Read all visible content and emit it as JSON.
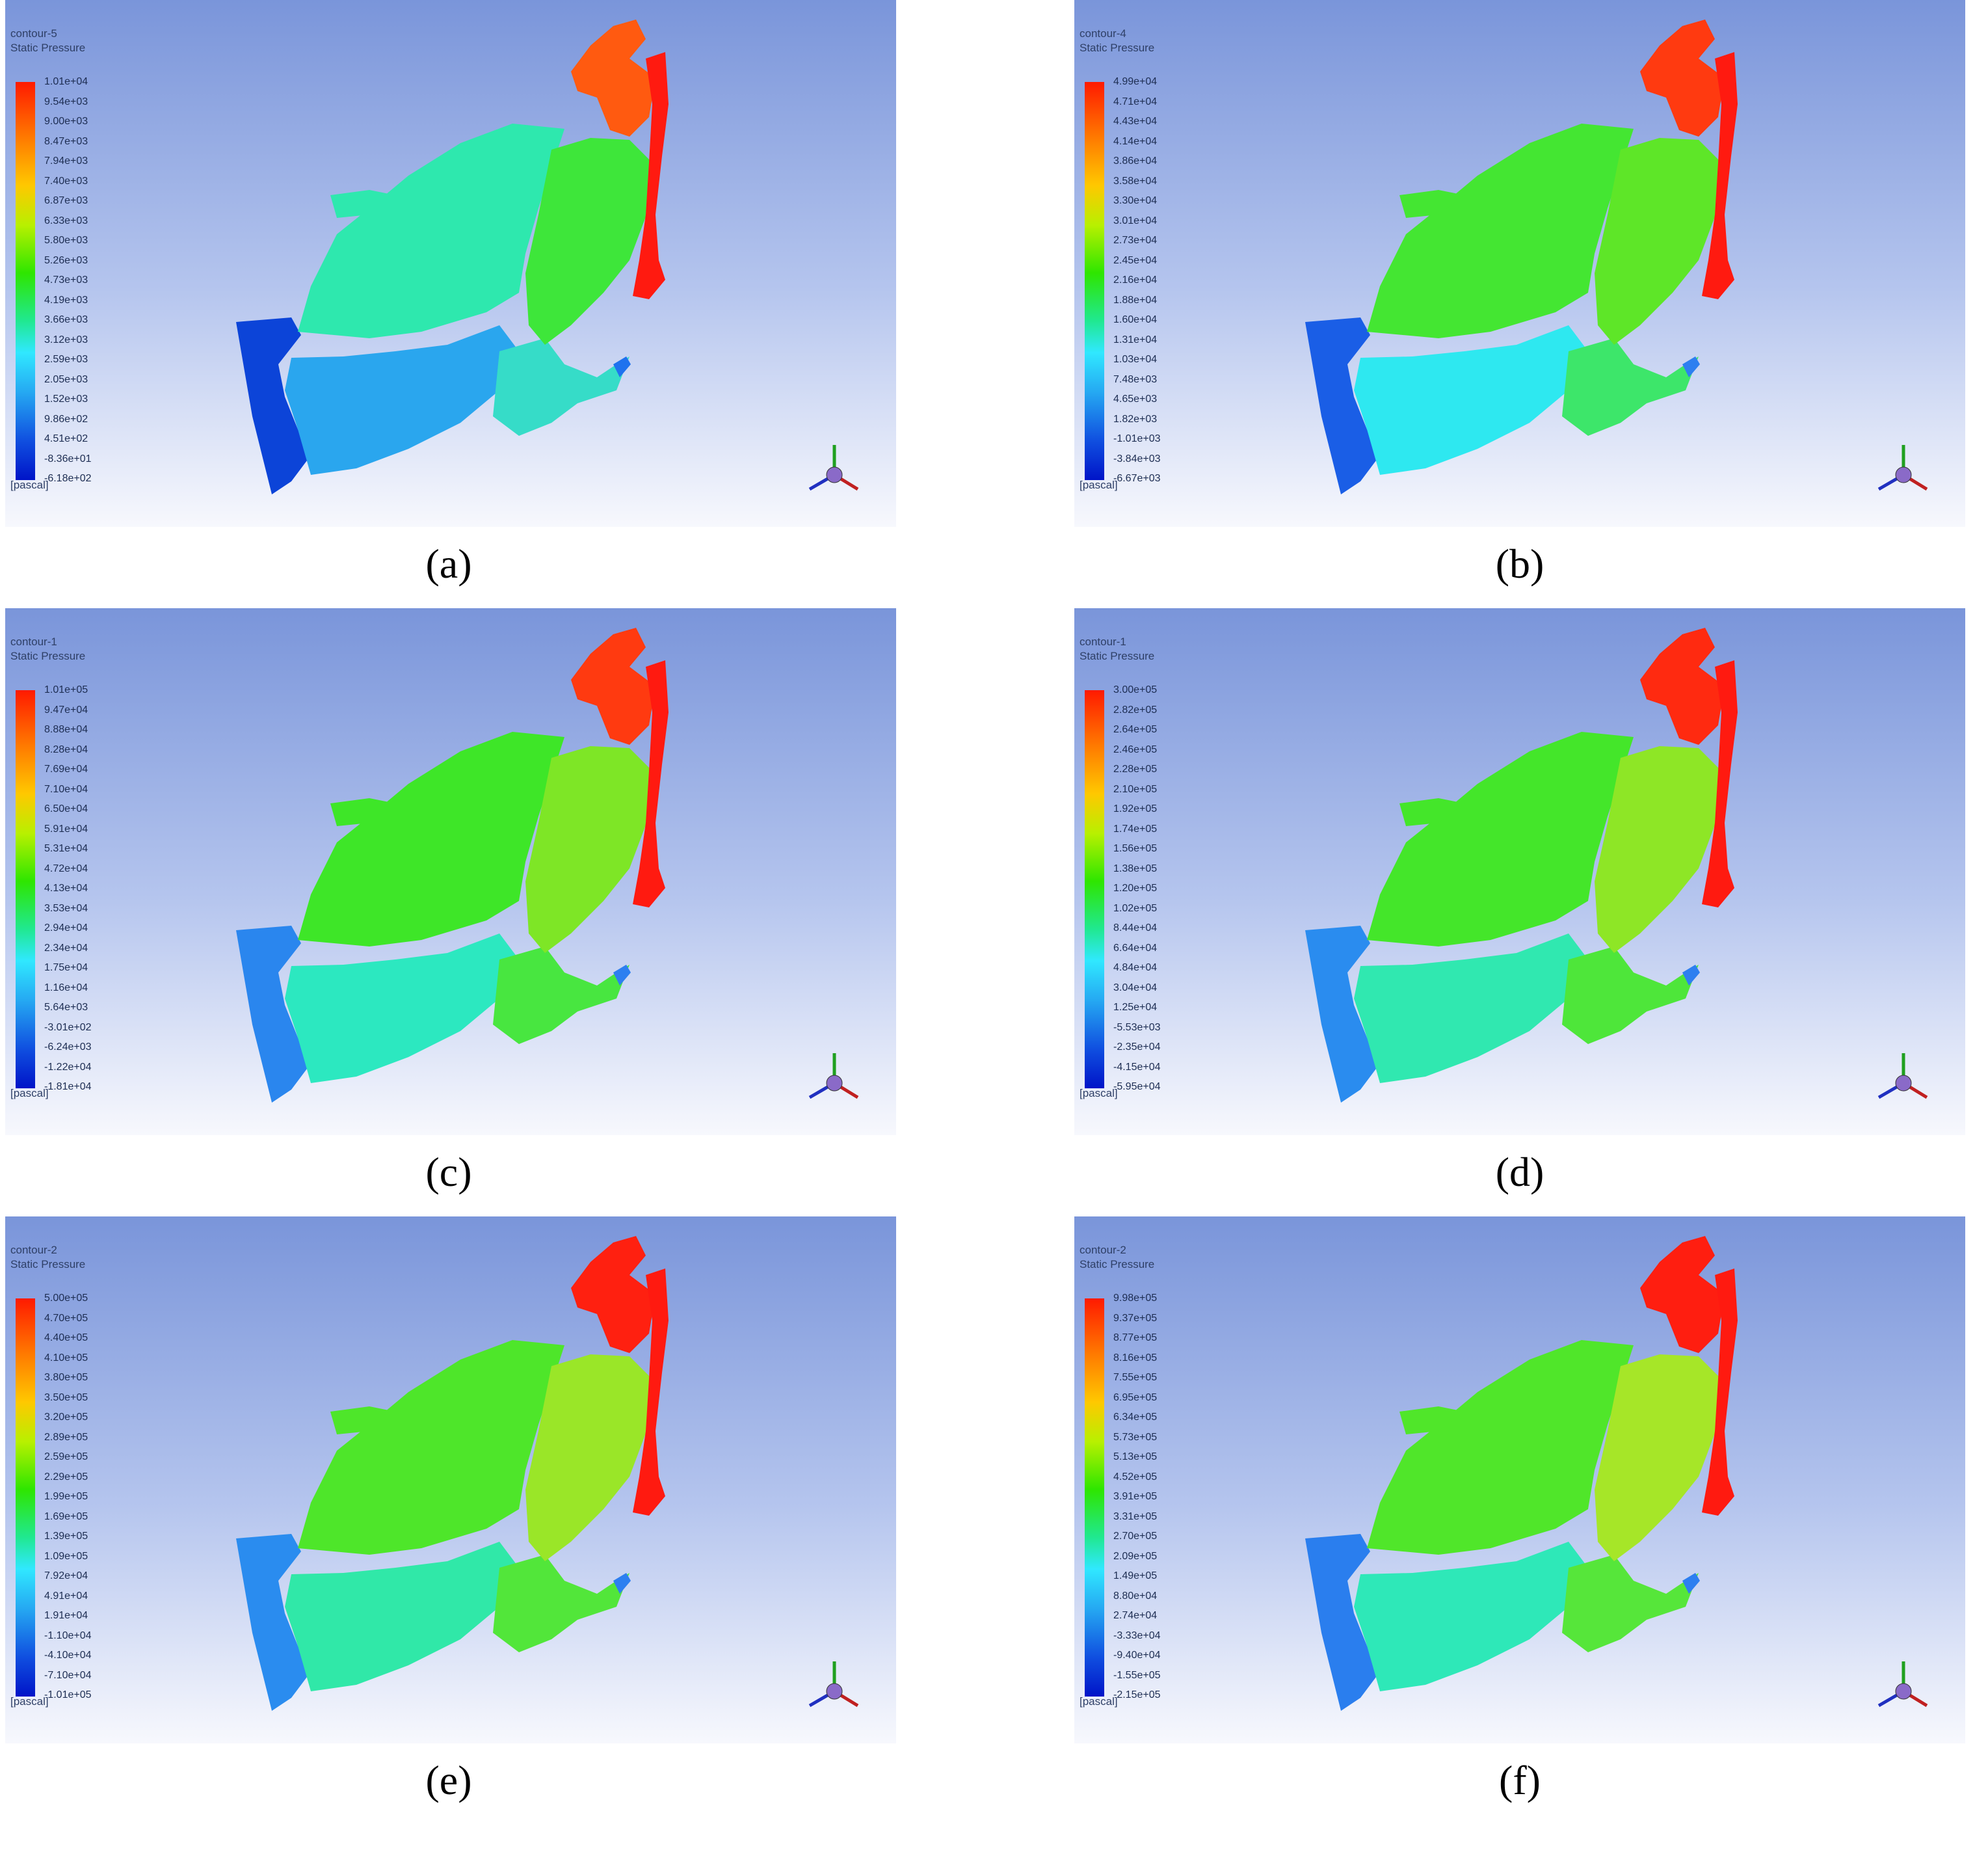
{
  "panels": [
    {
      "caption": "(a)",
      "contour_name": "contour-5",
      "variable": "Static Pressure",
      "unit": "[pascal]",
      "ticks": [
        "1.01e+04",
        "9.54e+03",
        "9.00e+03",
        "8.47e+03",
        "7.94e+03",
        "7.40e+03",
        "6.87e+03",
        "6.33e+03",
        "5.80e+03",
        "5.26e+03",
        "4.73e+03",
        "4.19e+03",
        "3.66e+03",
        "3.12e+03",
        "2.59e+03",
        "2.05e+03",
        "1.52e+03",
        "9.86e+02",
        "4.51e+02",
        "-8.36e+01",
        "-6.18e+02"
      ],
      "colors": {
        "west": "#0c44d8",
        "south": "#2aa6ee",
        "southeast": "#36dcc8",
        "center": "#2ee8ae",
        "east": "#3ee63a",
        "northeast": "#ff5a10",
        "far_east": "#ff1a10",
        "spot": "#1f72ee"
      }
    },
    {
      "caption": "(b)",
      "contour_name": "contour-4",
      "variable": "Static Pressure",
      "unit": "[pascal]",
      "ticks": [
        "4.99e+04",
        "4.71e+04",
        "4.43e+04",
        "4.14e+04",
        "3.86e+04",
        "3.58e+04",
        "3.30e+04",
        "3.01e+04",
        "2.73e+04",
        "2.45e+04",
        "2.16e+04",
        "1.88e+04",
        "1.60e+04",
        "1.31e+04",
        "1.03e+04",
        "7.48e+03",
        "4.65e+03",
        "1.82e+03",
        "-1.01e+03",
        "-3.84e+03",
        "-6.67e+03"
      ],
      "colors": {
        "west": "#1a5ee6",
        "south": "#2ee8f0",
        "southeast": "#3de66a",
        "center": "#44e632",
        "east": "#5ee628",
        "northeast": "#ff3a10",
        "far_east": "#ff1a10",
        "spot": "#2d7ff0"
      }
    },
    {
      "caption": "(c)",
      "contour_name": "contour-1",
      "variable": "Static Pressure",
      "unit": "[pascal]",
      "ticks": [
        "1.01e+05",
        "9.47e+04",
        "8.88e+04",
        "8.28e+04",
        "7.69e+04",
        "7.10e+04",
        "6.50e+04",
        "5.91e+04",
        "5.31e+04",
        "4.72e+04",
        "4.13e+04",
        "3.53e+04",
        "2.94e+04",
        "2.34e+04",
        "1.75e+04",
        "1.16e+04",
        "5.64e+03",
        "-3.01e+02",
        "-6.24e+03",
        "-1.22e+04",
        "-1.81e+04"
      ],
      "colors": {
        "west": "#2a86ee",
        "south": "#2ce8c0",
        "southeast": "#48e640",
        "center": "#3ee628",
        "east": "#7ee626",
        "northeast": "#ff3a10",
        "far_east": "#ff1a10",
        "spot": "#2d7ff0"
      }
    },
    {
      "caption": "(d)",
      "contour_name": "contour-1",
      "variable": "Static Pressure",
      "unit": "[pascal]",
      "ticks": [
        "3.00e+05",
        "2.82e+05",
        "2.64e+05",
        "2.46e+05",
        "2.28e+05",
        "2.10e+05",
        "1.92e+05",
        "1.74e+05",
        "1.56e+05",
        "1.38e+05",
        "1.20e+05",
        "1.02e+05",
        "8.44e+04",
        "6.64e+04",
        "4.84e+04",
        "3.04e+04",
        "1.25e+04",
        "-5.53e+03",
        "-2.35e+04",
        "-4.15e+04",
        "-5.95e+04"
      ],
      "colors": {
        "west": "#2a8cef",
        "south": "#30e8b0",
        "southeast": "#4ee63a",
        "center": "#44e62a",
        "east": "#8ee626",
        "northeast": "#ff2a10",
        "far_east": "#ff1a10",
        "spot": "#2d7ff0"
      }
    },
    {
      "caption": "(e)",
      "contour_name": "contour-2",
      "variable": "Static Pressure",
      "unit": "[pascal]",
      "ticks": [
        "5.00e+05",
        "4.70e+05",
        "4.40e+05",
        "4.10e+05",
        "3.80e+05",
        "3.50e+05",
        "3.20e+05",
        "2.89e+05",
        "2.59e+05",
        "2.29e+05",
        "1.99e+05",
        "1.69e+05",
        "1.39e+05",
        "1.09e+05",
        "7.92e+04",
        "4.91e+04",
        "1.91e+04",
        "-1.10e+04",
        "-4.10e+04",
        "-7.10e+04",
        "-1.01e+05"
      ],
      "colors": {
        "west": "#2a8cef",
        "south": "#30e8a8",
        "southeast": "#52e63a",
        "center": "#4ee62a",
        "east": "#9ae628",
        "northeast": "#ff2010",
        "far_east": "#ff1a10",
        "spot": "#2d7ff0"
      }
    },
    {
      "caption": "(f)",
      "contour_name": "contour-2",
      "variable": "Static Pressure",
      "unit": "[pascal]",
      "ticks": [
        "9.98e+05",
        "9.37e+05",
        "8.77e+05",
        "8.16e+05",
        "7.55e+05",
        "6.95e+05",
        "6.34e+05",
        "5.73e+05",
        "5.13e+05",
        "4.52e+05",
        "3.91e+05",
        "3.31e+05",
        "2.70e+05",
        "2.09e+05",
        "1.49e+05",
        "8.80e+04",
        "2.74e+04",
        "-3.33e+04",
        "-9.40e+04",
        "-1.55e+05",
        "-2.15e+05"
      ],
      "colors": {
        "west": "#2a7eee",
        "south": "#2ee8b8",
        "southeast": "#56e63a",
        "center": "#50e62a",
        "east": "#a6e628",
        "northeast": "#ff1e10",
        "far_east": "#ff1a10",
        "spot": "#2d7ff0"
      }
    }
  ]
}
